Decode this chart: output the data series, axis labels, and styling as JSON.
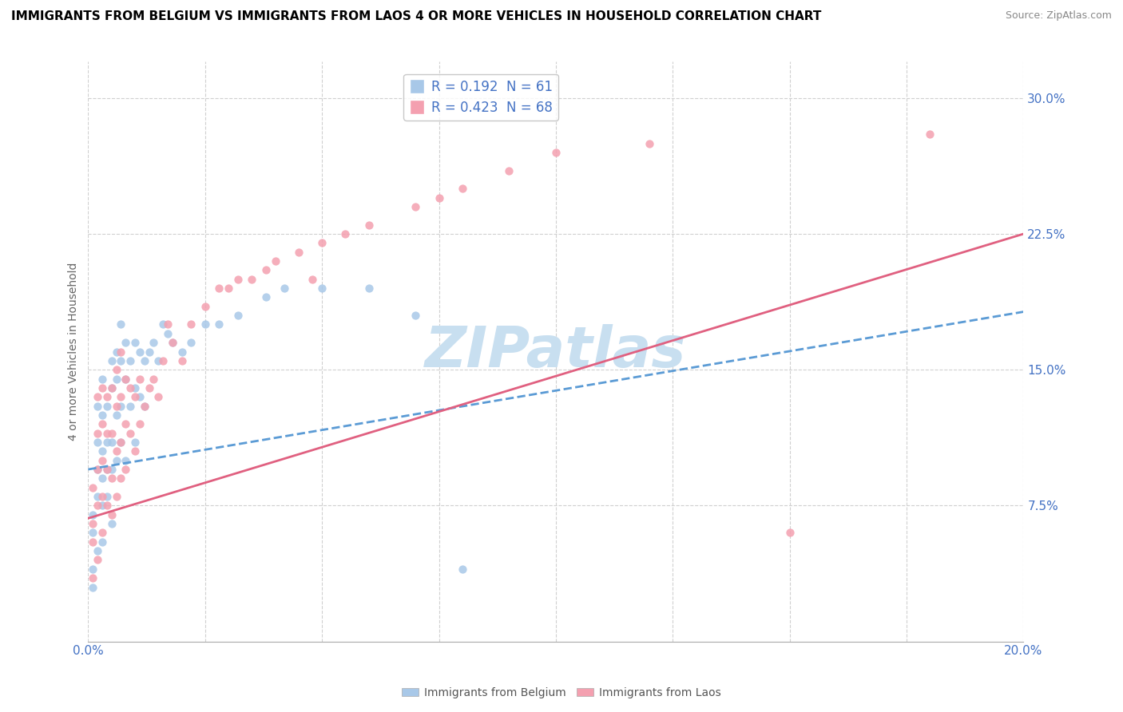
{
  "title": "IMMIGRANTS FROM BELGIUM VS IMMIGRANTS FROM LAOS 4 OR MORE VEHICLES IN HOUSEHOLD CORRELATION CHART",
  "source": "Source: ZipAtlas.com",
  "xlim": [
    0.0,
    0.2
  ],
  "ylim": [
    0.0,
    0.32
  ],
  "ytick_vals": [
    0.075,
    0.15,
    0.225,
    0.3
  ],
  "xtick_vals": [
    0.0,
    0.025,
    0.05,
    0.075,
    0.1,
    0.125,
    0.15,
    0.175,
    0.2
  ],
  "legend1_label": "R = 0.192  N = 61",
  "legend2_label": "R = 0.423  N = 68",
  "color_belgium": "#a8c8e8",
  "color_laos": "#f4a0b0",
  "color_trend_belgium": "#5b9bd5",
  "color_trend_laos": "#e06080",
  "watermark": "ZIPatlas",
  "watermark_color": "#c8dff0",
  "title_fontsize": 11,
  "source_fontsize": 9,
  "tick_fontsize": 11,
  "legend_fontsize": 11,
  "ylabel_text": "4 or more Vehicles in Household",
  "belgium_x": [
    0.001,
    0.001,
    0.001,
    0.001,
    0.002,
    0.002,
    0.002,
    0.002,
    0.002,
    0.003,
    0.003,
    0.003,
    0.003,
    0.003,
    0.003,
    0.004,
    0.004,
    0.004,
    0.004,
    0.005,
    0.005,
    0.005,
    0.005,
    0.005,
    0.006,
    0.006,
    0.006,
    0.006,
    0.007,
    0.007,
    0.007,
    0.007,
    0.008,
    0.008,
    0.008,
    0.009,
    0.009,
    0.01,
    0.01,
    0.01,
    0.011,
    0.011,
    0.012,
    0.012,
    0.013,
    0.014,
    0.015,
    0.016,
    0.017,
    0.018,
    0.02,
    0.022,
    0.025,
    0.028,
    0.032,
    0.038,
    0.042,
    0.05,
    0.06,
    0.07,
    0.08
  ],
  "belgium_y": [
    0.03,
    0.04,
    0.06,
    0.07,
    0.05,
    0.08,
    0.095,
    0.11,
    0.13,
    0.055,
    0.075,
    0.09,
    0.105,
    0.125,
    0.145,
    0.08,
    0.095,
    0.11,
    0.13,
    0.065,
    0.095,
    0.11,
    0.14,
    0.155,
    0.1,
    0.125,
    0.145,
    0.16,
    0.11,
    0.13,
    0.155,
    0.175,
    0.1,
    0.145,
    0.165,
    0.13,
    0.155,
    0.11,
    0.14,
    0.165,
    0.135,
    0.16,
    0.13,
    0.155,
    0.16,
    0.165,
    0.155,
    0.175,
    0.17,
    0.165,
    0.16,
    0.165,
    0.175,
    0.175,
    0.18,
    0.19,
    0.195,
    0.195,
    0.195,
    0.18,
    0.04
  ],
  "laos_x": [
    0.001,
    0.001,
    0.001,
    0.001,
    0.002,
    0.002,
    0.002,
    0.002,
    0.002,
    0.003,
    0.003,
    0.003,
    0.003,
    0.003,
    0.004,
    0.004,
    0.004,
    0.004,
    0.005,
    0.005,
    0.005,
    0.005,
    0.006,
    0.006,
    0.006,
    0.006,
    0.007,
    0.007,
    0.007,
    0.007,
    0.008,
    0.008,
    0.008,
    0.009,
    0.009,
    0.01,
    0.01,
    0.011,
    0.011,
    0.012,
    0.013,
    0.014,
    0.015,
    0.016,
    0.017,
    0.018,
    0.02,
    0.022,
    0.025,
    0.028,
    0.03,
    0.032,
    0.035,
    0.038,
    0.04,
    0.045,
    0.048,
    0.05,
    0.055,
    0.06,
    0.07,
    0.075,
    0.08,
    0.09,
    0.1,
    0.12,
    0.15,
    0.18
  ],
  "laos_y": [
    0.035,
    0.055,
    0.065,
    0.085,
    0.045,
    0.075,
    0.095,
    0.115,
    0.135,
    0.06,
    0.08,
    0.1,
    0.12,
    0.14,
    0.075,
    0.095,
    0.115,
    0.135,
    0.07,
    0.09,
    0.115,
    0.14,
    0.08,
    0.105,
    0.13,
    0.15,
    0.09,
    0.11,
    0.135,
    0.16,
    0.095,
    0.12,
    0.145,
    0.115,
    0.14,
    0.105,
    0.135,
    0.12,
    0.145,
    0.13,
    0.14,
    0.145,
    0.135,
    0.155,
    0.175,
    0.165,
    0.155,
    0.175,
    0.185,
    0.195,
    0.195,
    0.2,
    0.2,
    0.205,
    0.21,
    0.215,
    0.2,
    0.22,
    0.225,
    0.23,
    0.24,
    0.245,
    0.25,
    0.26,
    0.27,
    0.275,
    0.06,
    0.28
  ],
  "trend_bel_x0": 0.0,
  "trend_bel_y0": 0.095,
  "trend_bel_x1": 0.2,
  "trend_bel_y1": 0.182,
  "trend_laos_x0": 0.0,
  "trend_laos_y0": 0.068,
  "trend_laos_x1": 0.2,
  "trend_laos_y1": 0.225
}
